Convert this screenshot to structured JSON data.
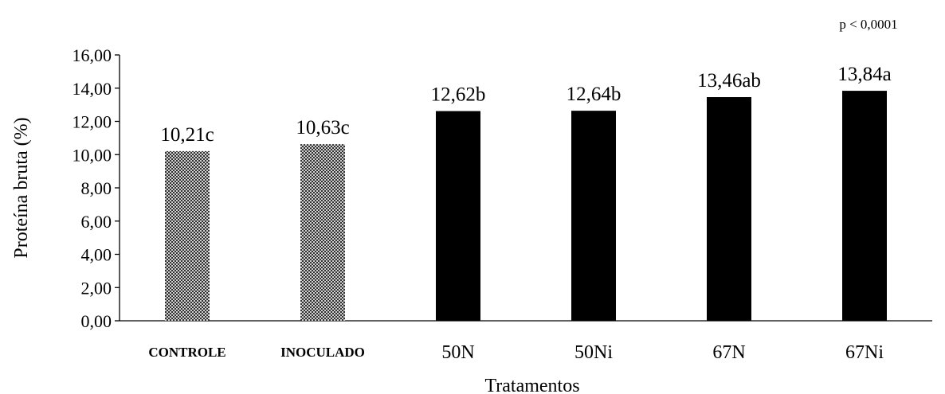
{
  "chart_data": {
    "type": "bar",
    "categories": [
      "CONTROLE",
      "INOCULADO",
      "50N",
      "50Ni",
      "67N",
      "67Ni"
    ],
    "values": [
      10.21,
      10.63,
      12.62,
      12.64,
      13.46,
      13.84
    ],
    "data_labels": [
      "10,21c",
      "10,63c",
      "12,62b",
      "12,64b",
      "13,46ab",
      "13,84a"
    ],
    "bar_styles": [
      "hatched",
      "hatched",
      "solid",
      "solid",
      "solid",
      "solid"
    ],
    "bold_categories": [
      true,
      true,
      false,
      false,
      false,
      false
    ],
    "xlabel": "Tratamentos",
    "ylabel": "Proteína bruta (%)",
    "ylim": [
      0,
      16
    ],
    "yticks": [
      0,
      2,
      4,
      6,
      8,
      10,
      12,
      14,
      16
    ],
    "ytick_labels": [
      "0,00",
      "2,00",
      "4,00",
      "6,00",
      "8,00",
      "10,00",
      "12,00",
      "14,00",
      "16,00"
    ],
    "annotation": "p < 0,0001",
    "grid": false,
    "colors": {
      "solid": "#000000",
      "hatch_fg": "#111111",
      "hatch_bg": "#ffffff"
    }
  }
}
